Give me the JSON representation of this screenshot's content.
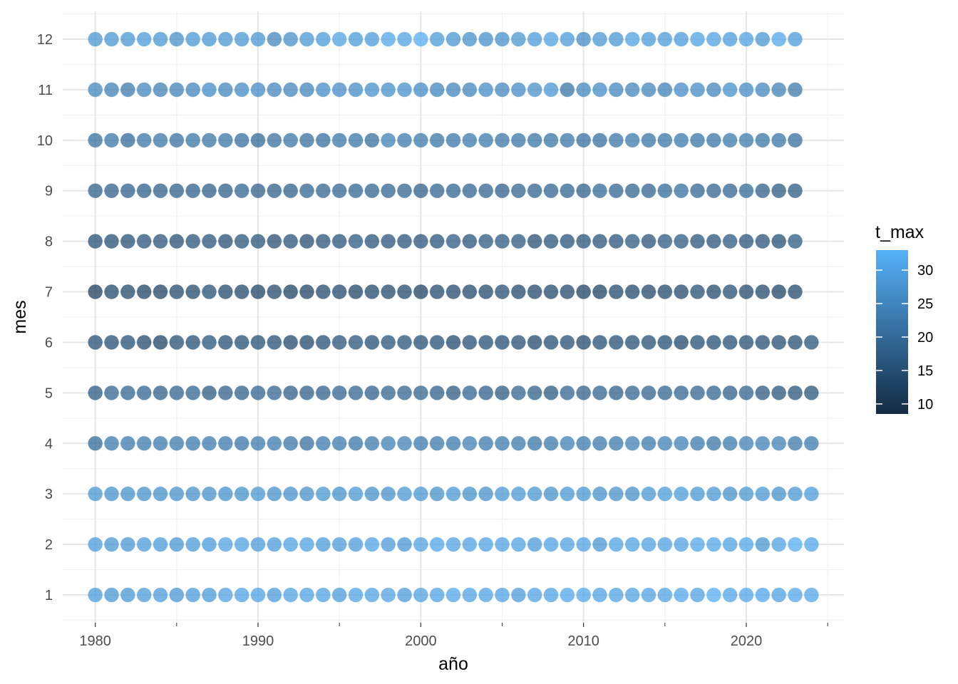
{
  "chart_data": {
    "type": "scatter",
    "title": "",
    "xlabel": "año",
    "ylabel": "mes",
    "xlim": [
      1978,
      2026
    ],
    "ylim": [
      0.45,
      12.55
    ],
    "x_ticks": [
      1980,
      1990,
      2000,
      2010,
      2020
    ],
    "y_ticks": [
      1,
      2,
      3,
      4,
      5,
      6,
      7,
      8,
      9,
      10,
      11,
      12
    ],
    "grid": true,
    "legend": {
      "title": "t_max",
      "position": "right",
      "type": "colorbar",
      "range": [
        8.5,
        33
      ],
      "ticks": [
        10,
        15,
        20,
        25,
        30
      ],
      "low_color": "#132B43",
      "high_color": "#56B1F7"
    },
    "point_opacity": 0.75,
    "x_start": 1980,
    "series": [
      {
        "name": "1",
        "y": 1,
        "t_max": [
          29,
          28,
          28,
          29,
          29,
          28,
          29,
          29,
          30,
          30,
          30,
          29,
          30,
          30,
          30,
          29,
          30,
          30,
          30,
          29,
          30,
          30,
          31,
          30,
          30,
          30,
          29,
          30,
          30,
          31,
          31,
          30,
          30,
          30,
          30,
          30,
          31,
          30,
          32,
          31,
          31,
          31,
          30,
          31,
          31
        ]
      },
      {
        "name": "2",
        "y": 2,
        "t_max": [
          29,
          28,
          28,
          29,
          29,
          28,
          29,
          29,
          30,
          30,
          29,
          29,
          30,
          30,
          29,
          29,
          29,
          30,
          29,
          28,
          30,
          31,
          30,
          30,
          30,
          30,
          30,
          29,
          30,
          30,
          30,
          28,
          30,
          30,
          30,
          30,
          30,
          31,
          31,
          30,
          31,
          28,
          30,
          32,
          31
        ]
      },
      {
        "name": "3",
        "y": 3,
        "t_max": [
          28,
          27,
          27,
          27,
          27,
          27,
          27,
          27,
          27,
          27,
          28,
          27,
          27,
          27,
          28,
          27,
          28,
          27,
          27,
          28,
          28,
          27,
          28,
          27,
          27,
          28,
          28,
          28,
          27,
          28,
          28,
          27,
          27,
          27,
          28,
          29,
          29,
          28,
          28,
          27,
          28,
          28,
          27,
          28,
          29
        ]
      },
      {
        "name": "4",
        "y": 4,
        "t_max": [
          20,
          23,
          23,
          23,
          23,
          23,
          23,
          23,
          23,
          22,
          23,
          23,
          22,
          21,
          23,
          23,
          22,
          23,
          24,
          24,
          23,
          23,
          23,
          24,
          23,
          23,
          23,
          22,
          23,
          24,
          23,
          23,
          23,
          24,
          23,
          24,
          24,
          23,
          22,
          23,
          24,
          24,
          24,
          23,
          23
        ]
      },
      {
        "name": "5",
        "y": 5,
        "t_max": [
          17,
          19,
          19,
          19,
          18,
          19,
          19,
          17,
          18,
          18,
          19,
          19,
          18,
          18,
          18,
          19,
          19,
          18,
          19,
          19,
          19,
          18,
          17,
          19,
          18,
          17,
          19,
          18,
          17,
          19,
          18,
          19,
          18,
          19,
          19,
          19,
          19,
          19,
          19,
          18,
          19,
          17,
          16,
          16,
          16
        ]
      },
      {
        "name": "6",
        "y": 6,
        "t_max": [
          15,
          15,
          15,
          14,
          13,
          15,
          15,
          16,
          15,
          15,
          15,
          15,
          14,
          14,
          15,
          16,
          16,
          15,
          16,
          16,
          15,
          15,
          14,
          15,
          15,
          15,
          15,
          14,
          15,
          15,
          14,
          15,
          15,
          15,
          15,
          15,
          14,
          15,
          15,
          15,
          15,
          15,
          15,
          15,
          16
        ]
      },
      {
        "name": "7",
        "y": 7,
        "t_max": [
          12,
          14,
          14,
          13,
          13,
          14,
          14,
          15,
          14,
          14,
          13,
          14,
          13,
          13,
          14,
          14,
          13,
          14,
          14,
          14,
          13,
          14,
          14,
          14,
          14,
          15,
          14,
          14,
          14,
          14,
          13,
          13,
          14,
          14,
          14,
          14,
          14,
          15,
          14,
          15,
          14,
          14,
          13,
          14
        ]
      },
      {
        "name": "8",
        "y": 8,
        "t_max": [
          15,
          15,
          15,
          16,
          16,
          15,
          16,
          16,
          15,
          16,
          16,
          15,
          16,
          15,
          16,
          16,
          17,
          16,
          16,
          16,
          16,
          16,
          17,
          16,
          17,
          17,
          17,
          15,
          16,
          16,
          16,
          16,
          16,
          17,
          16,
          17,
          17,
          16,
          16,
          17,
          16,
          16,
          15,
          17
        ]
      },
      {
        "name": "9",
        "y": 9,
        "t_max": [
          18,
          18,
          18,
          18,
          18,
          18,
          18,
          18,
          18,
          19,
          18,
          18,
          18,
          19,
          19,
          19,
          19,
          19,
          19,
          19,
          18,
          19,
          19,
          19,
          19,
          18,
          19,
          19,
          19,
          19,
          18,
          20,
          19,
          19,
          19,
          20,
          21,
          19,
          19,
          19,
          20,
          18,
          17,
          17
        ]
      },
      {
        "name": "10",
        "y": 10,
        "t_max": [
          21,
          22,
          20,
          22,
          22,
          21,
          22,
          22,
          22,
          21,
          20,
          21,
          22,
          21,
          21,
          22,
          22,
          21,
          24,
          23,
          23,
          22,
          22,
          23,
          23,
          22,
          22,
          22,
          22,
          22,
          21,
          21,
          22,
          23,
          22,
          22,
          23,
          22,
          22,
          23,
          23,
          22,
          22,
          21
        ]
      },
      {
        "name": "11",
        "y": 11,
        "t_max": [
          25,
          24,
          23,
          25,
          24,
          24,
          25,
          26,
          25,
          26,
          26,
          25,
          25,
          25,
          26,
          26,
          26,
          27,
          27,
          27,
          26,
          25,
          25,
          25,
          26,
          25,
          26,
          27,
          28,
          22,
          25,
          26,
          25,
          25,
          25,
          24,
          26,
          26,
          25,
          27,
          26,
          25,
          24,
          23
        ]
      },
      {
        "name": "12",
        "y": 12,
        "t_max": [
          28,
          28,
          28,
          29,
          28,
          27,
          28,
          28,
          28,
          28,
          28,
          25,
          27,
          28,
          29,
          30,
          29,
          29,
          31,
          30,
          32,
          29,
          28,
          27,
          27,
          27,
          28,
          29,
          30,
          29,
          26,
          28,
          28,
          30,
          29,
          29,
          29,
          30,
          30,
          29,
          30,
          28,
          31,
          29
        ]
      }
    ]
  }
}
